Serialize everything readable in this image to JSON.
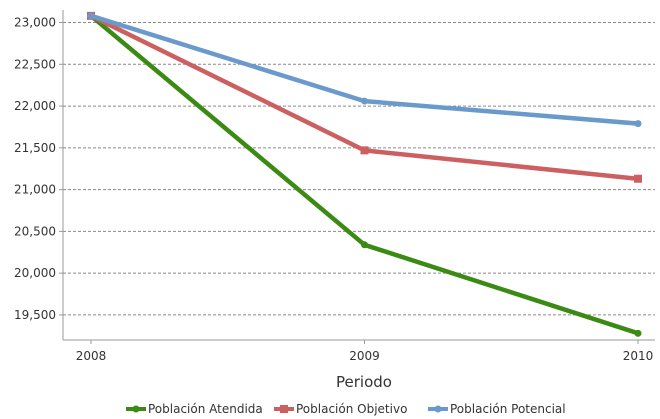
{
  "chart_data": {
    "type": "line",
    "title": "",
    "xlabel": "Periodo",
    "ylabel": "",
    "x": [
      "2008",
      "2009",
      "2010"
    ],
    "ylim": [
      19200,
      23150
    ],
    "yticks": [
      19500,
      20000,
      20500,
      21000,
      21500,
      22000,
      22500,
      23000
    ],
    "ytick_labels": [
      "19,500",
      "20,000",
      "20,500",
      "21,000",
      "21,500",
      "22,000",
      "22,500",
      "23,000"
    ],
    "grid": true,
    "legend_position": "bottom",
    "series": [
      {
        "name": "Población Atendida",
        "color": "#3a8a14",
        "marker": "circle",
        "values": [
          23080,
          20340,
          19280
        ]
      },
      {
        "name": "Población Objetivo",
        "color": "#cc6060",
        "marker": "square",
        "values": [
          23080,
          21470,
          21130
        ]
      },
      {
        "name": "Población Potencial",
        "color": "#6a9acc",
        "marker": "circle",
        "values": [
          23080,
          22060,
          21790
        ]
      }
    ]
  }
}
